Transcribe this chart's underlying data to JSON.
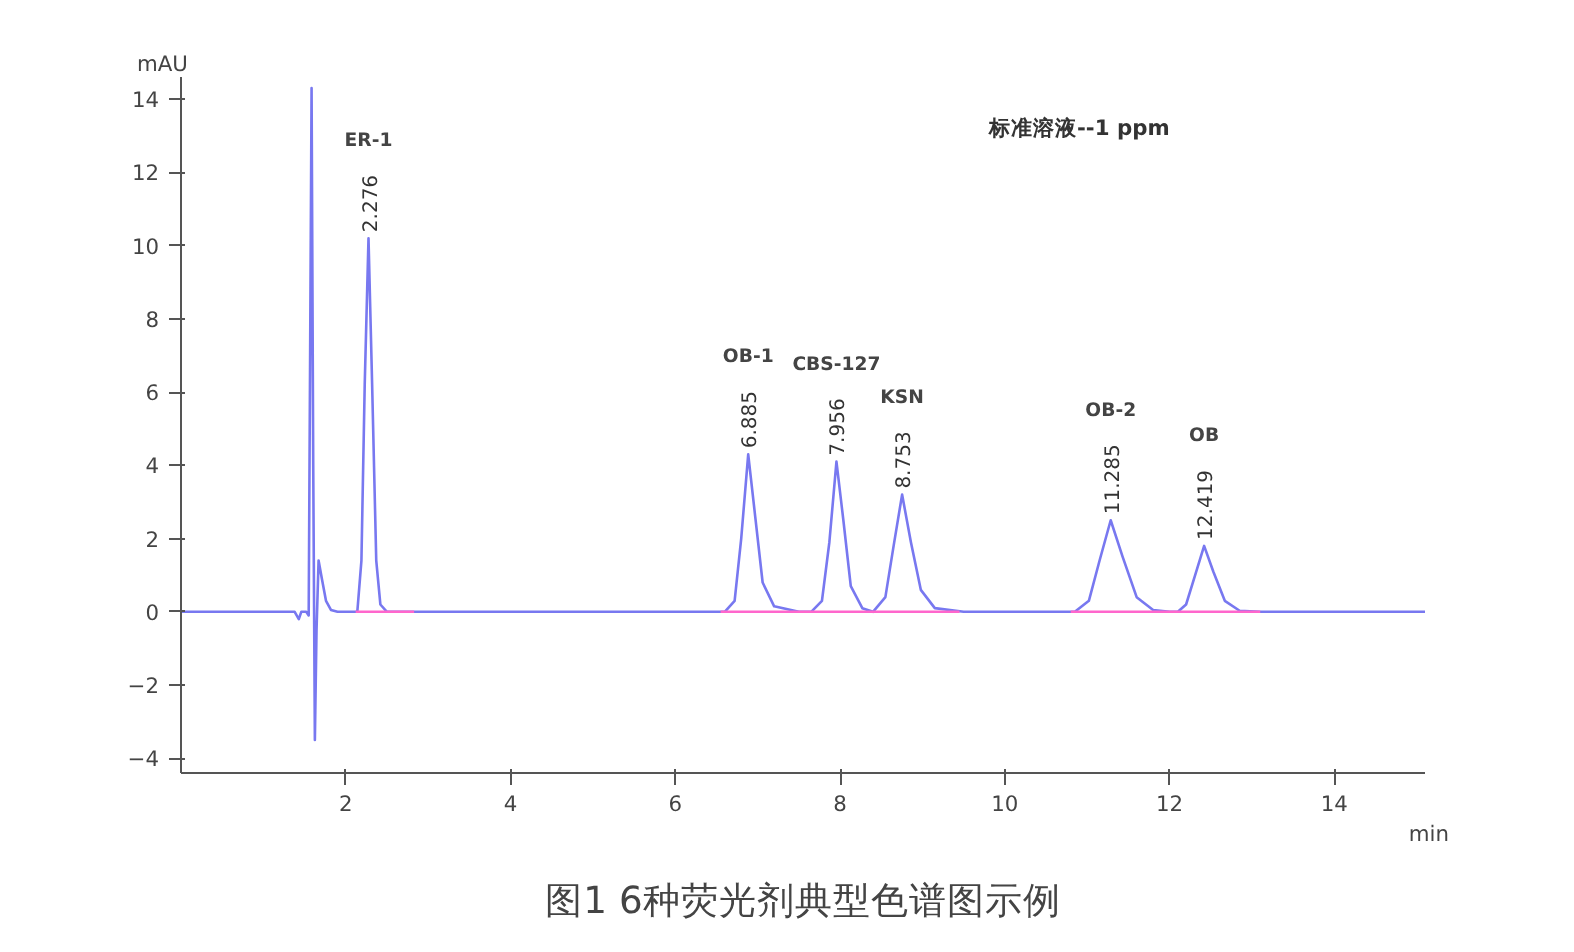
{
  "chart_data": {
    "type": "line",
    "title": "图1 6种荧光剂典型色谱图示例",
    "xlabel": "min",
    "ylabel": "mAU",
    "xlim": [
      0,
      15.1
    ],
    "xticks": [
      2,
      4,
      6,
      8,
      10,
      12,
      14
    ],
    "ylim": [
      -4.4,
      14.6
    ],
    "yticks": [
      -4,
      -2,
      0,
      2,
      4,
      6,
      8,
      10,
      12,
      14
    ],
    "grid": false,
    "marker": "none",
    "line_style": "solid",
    "series": [
      {
        "color": "#7878f0",
        "x": [
          0,
          1.38,
          1.43,
          1.46,
          1.52,
          1.55,
          1.585,
          1.605,
          1.625,
          1.645,
          1.67,
          1.71,
          1.76,
          1.82,
          1.9,
          2.14,
          2.19,
          2.23,
          2.276,
          2.32,
          2.37,
          2.42,
          2.5,
          6.6,
          6.72,
          6.8,
          6.885,
          6.97,
          7.06,
          7.2,
          7.5,
          7.65,
          7.78,
          7.87,
          7.956,
          8.04,
          8.13,
          8.27,
          8.4,
          8.55,
          8.65,
          8.753,
          8.86,
          8.98,
          9.15,
          9.5,
          10.85,
          11.02,
          11.15,
          11.285,
          11.43,
          11.6,
          11.8,
          12.0,
          12.1,
          12.2,
          12.31,
          12.419,
          12.53,
          12.67,
          12.85,
          13.1,
          15.1
        ],
        "values": [
          0,
          0,
          -0.2,
          0,
          0,
          -0.1,
          14.3,
          4,
          -3.5,
          -0.5,
          1.4,
          0.9,
          0.3,
          0.05,
          0,
          0,
          1.4,
          6.2,
          10.2,
          6.2,
          1.4,
          0.2,
          0,
          0,
          0.3,
          2.0,
          4.3,
          2.6,
          0.8,
          0.15,
          0,
          0,
          0.3,
          1.9,
          4.1,
          2.5,
          0.7,
          0.1,
          0,
          0.4,
          1.8,
          3.2,
          1.9,
          0.6,
          0.1,
          0,
          0,
          0.3,
          1.4,
          2.5,
          1.5,
          0.4,
          0.05,
          0,
          0,
          0.2,
          1.0,
          1.8,
          1.1,
          0.3,
          0.03,
          0,
          0
        ]
      },
      {
        "color": "#ff66cc",
        "x": [
          2.12,
          2.83,
          2.9,
          6.55,
          7.55,
          8.35,
          9.45,
          9.5,
          10.8,
          12.0,
          13.1
        ],
        "values": [
          0,
          0,
          null,
          0,
          0,
          0,
          0,
          null,
          0,
          0,
          0
        ]
      }
    ],
    "annotations": [
      "标准溶液--1 ppm",
      "ER-1",
      {
        "text": "2.276",
        "x": 2.276,
        "y": 10.2
      },
      "OB-1",
      {
        "text": "6.885",
        "x": 6.885,
        "y": 4.3
      },
      "CBS-127",
      {
        "text": "7.956",
        "x": 7.956,
        "y": 4.1
      },
      "KSN",
      {
        "text": "8.753",
        "x": 8.753,
        "y": 3.2
      },
      "OB-2",
      {
        "text": "11.285",
        "x": 11.285,
        "y": 2.5
      },
      "OB",
      {
        "text": "12.419",
        "x": 12.419,
        "y": 1.8
      }
    ]
  }
}
